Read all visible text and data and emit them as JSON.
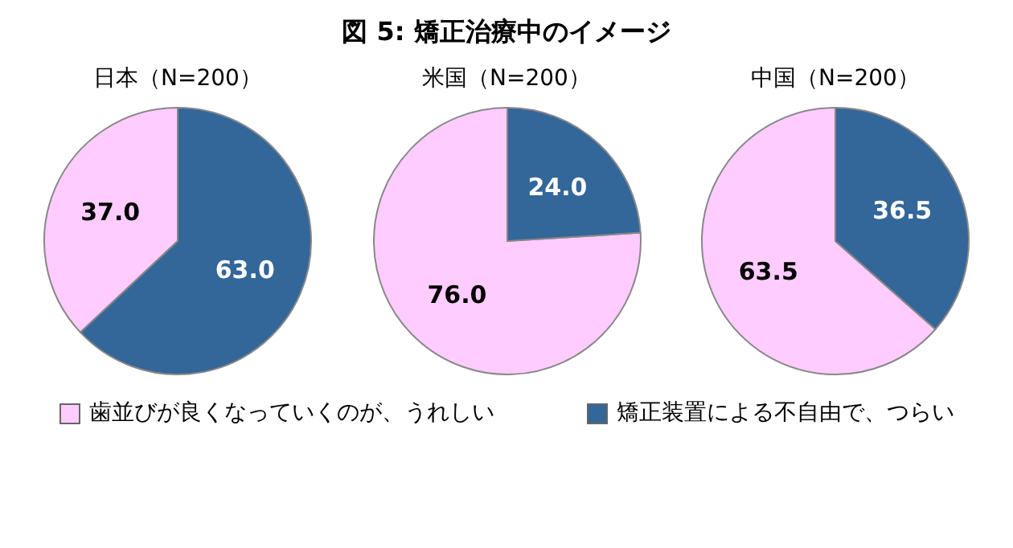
{
  "chart_data": [
    {
      "type": "pie",
      "subtitle": "日本（N=200）",
      "categories": [
        null,
        null
      ],
      "values": [
        37.0,
        63.0
      ],
      "value_labels": [
        "37.0",
        "63.0"
      ],
      "colors": [
        "#ffccff",
        "#336699"
      ]
    },
    {
      "type": "pie",
      "title": "図 5:  矯正治療中のイメージ",
      "subtitle": "米国（N=200）",
      "categories": [
        "歯並びが良くなっていくのが、うれしい",
        "矯正装置による不自由で、つらい"
      ],
      "values": [
        76.0,
        24.0
      ],
      "value_labels": [
        "76.0",
        "24.0"
      ],
      "colors": [
        "#ffccff",
        "#336699"
      ],
      "legend": "bottom"
    },
    {
      "type": "pie",
      "subtitle": "中国（N=200）",
      "categories": [
        null,
        null
      ],
      "values": [
        63.5,
        36.5
      ],
      "value_labels": [
        "63.5",
        "36.5"
      ],
      "colors": [
        "#ffccff",
        "#336699"
      ]
    }
  ]
}
